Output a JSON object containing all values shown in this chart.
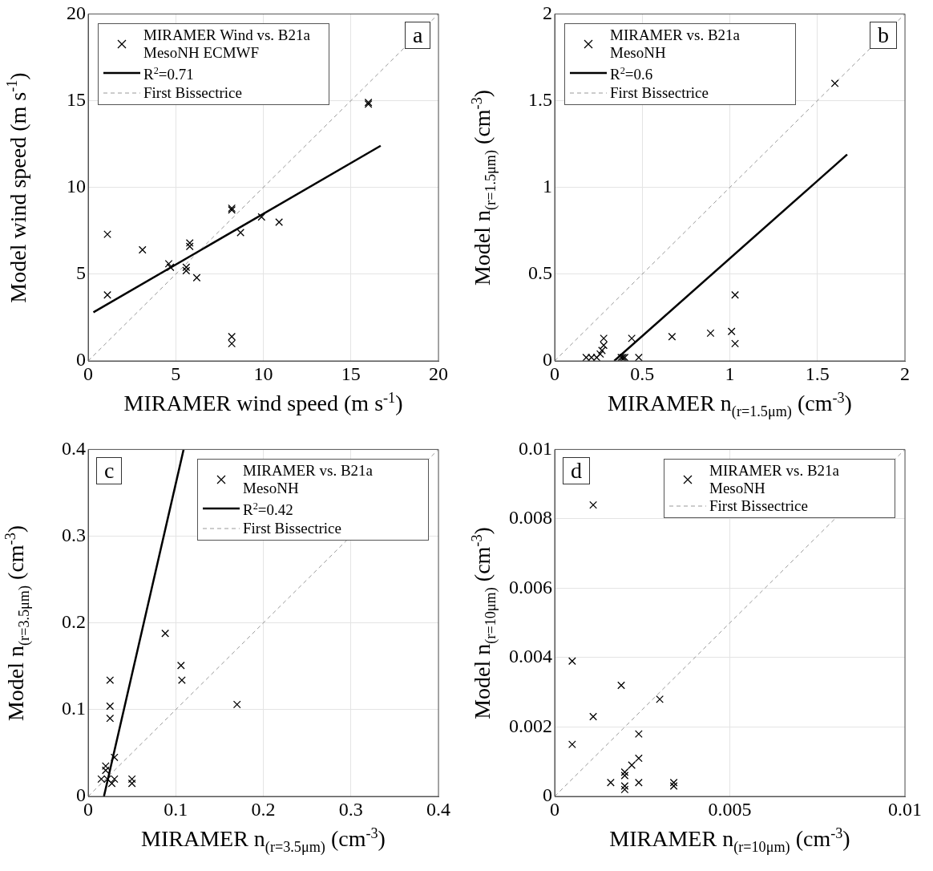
{
  "chart_data": [
    {
      "type": "scatter",
      "xlabel": "MIRAMER wind speed (m s$^{-1}$)",
      "ylabel": "Model wind speed (m s$^{-1}$)",
      "xlim": [
        0,
        20
      ],
      "ylim": [
        0,
        20
      ],
      "xticks": [
        0,
        5,
        10,
        15,
        20
      ],
      "yticks": [
        0,
        5,
        10,
        15,
        20
      ],
      "grid": true,
      "legend": "top left",
      "annotations": [
        "a"
      ],
      "series": [
        {
          "name": "MIRAMER Wind vs. B21a MesoNH ECMWF",
          "type": "scatter",
          "marker": "cross",
          "color": "#000000",
          "x": [
            1.1,
            1.1,
            3.1,
            4.6,
            4.7,
            5.6,
            5.6,
            5.8,
            5.8,
            6.2,
            8.2,
            8.2,
            8.2,
            8.2,
            8.7,
            9.9,
            10.9,
            16,
            16
          ],
          "values": [
            7.3,
            3.8,
            6.4,
            5.6,
            5.4,
            5.4,
            5.2,
            6.6,
            6.8,
            4.8,
            8.7,
            8.8,
            1.4,
            1.0,
            7.4,
            8.3,
            8.0,
            14.8,
            14.9
          ]
        },
        {
          "name": "R$^{2}$=0.71",
          "type": "line",
          "marker": "none",
          "color": "#000000",
          "x": [
            0.3,
            16.7
          ],
          "values": [
            2.8,
            12.4
          ]
        },
        {
          "name": "First Bissectrice",
          "type": "line",
          "marker": "none",
          "line_style": "dashed",
          "color": "#999999",
          "x": [
            0,
            20
          ],
          "values": [
            0,
            20
          ]
        }
      ]
    },
    {
      "type": "scatter",
      "xlabel": "MIRAMER n$_{(r=1.5μm)}$ (cm$^{-3}$)",
      "ylabel": "Model n$_{(r=1.5μm)}$ (cm$^{-3}$)",
      "xlim": [
        0,
        2
      ],
      "ylim": [
        0,
        2
      ],
      "xticks": [
        0,
        0.5,
        1,
        1.5,
        2
      ],
      "yticks": [
        0,
        0.5,
        1,
        1.5,
        2
      ],
      "grid": true,
      "legend": "top left",
      "annotations": [
        "b"
      ],
      "series": [
        {
          "name": "MIRAMER vs. B21a MesoNH",
          "type": "scatter",
          "marker": "cross",
          "color": "#000000",
          "x": [
            0.18,
            0.21,
            0.24,
            0.26,
            0.27,
            0.28,
            0.28,
            0.38,
            0.39,
            0.4,
            0.44,
            0.48,
            0.67,
            0.89,
            1.01,
            1.03,
            1.03,
            1.6
          ],
          "values": [
            0.02,
            0.02,
            0.02,
            0.04,
            0.06,
            0.09,
            0.13,
            0.02,
            0.02,
            0.02,
            0.13,
            0.02,
            0.14,
            0.16,
            0.17,
            0.1,
            0.38,
            1.6
          ]
        },
        {
          "name": "R$^{2}$=0.6",
          "type": "line",
          "marker": "none",
          "color": "#000000",
          "x": [
            0.34,
            1.67
          ],
          "values": [
            0,
            1.19
          ]
        },
        {
          "name": "First Bissectrice",
          "type": "line",
          "marker": "none",
          "line_style": "dashed",
          "color": "#999999",
          "x": [
            0,
            2
          ],
          "values": [
            0,
            2
          ]
        }
      ]
    },
    {
      "type": "scatter",
      "xlabel": "MIRAMER n$_{(r=3.5μm)}$ (cm$^{-3}$)",
      "ylabel": "Model n$_{(r=3.5μm)}$ (cm$^{-3}$)",
      "xlim": [
        0,
        0.4
      ],
      "ylim": [
        0,
        0.4
      ],
      "xticks": [
        0,
        0.1,
        0.2,
        0.3,
        0.4
      ],
      "yticks": [
        0,
        0.1,
        0.2,
        0.3,
        0.4
      ],
      "grid": true,
      "legend": "top right",
      "annotations": [
        "c"
      ],
      "series": [
        {
          "name": "MIRAMER vs. B21a MesoNH",
          "type": "scatter",
          "marker": "cross",
          "color": "#000000",
          "x": [
            0.015,
            0.02,
            0.02,
            0.022,
            0.025,
            0.025,
            0.025,
            0.027,
            0.03,
            0.03,
            0.05,
            0.05,
            0.088,
            0.106,
            0.107,
            0.17
          ],
          "values": [
            0.02,
            0.03,
            0.035,
            0.02,
            0.09,
            0.104,
            0.134,
            0.015,
            0.045,
            0.02,
            0.015,
            0.02,
            0.188,
            0.151,
            0.134,
            0.106
          ]
        },
        {
          "name": "R$^{2}$=0.42",
          "type": "line",
          "marker": "none",
          "color": "#000000",
          "x": [
            0.018,
            0.109
          ],
          "values": [
            0,
            0.4
          ]
        },
        {
          "name": "First Bissectrice",
          "type": "line",
          "marker": "none",
          "line_style": "dashed",
          "color": "#999999",
          "x": [
            0,
            0.4
          ],
          "values": [
            0,
            0.4
          ]
        }
      ]
    },
    {
      "type": "scatter",
      "xlabel": "MIRAMER n$_{(r=10μm)}$ (cm$^{-3}$)",
      "ylabel": "Model n$_{(r=10μm)}$ (cm$^{-3}$)",
      "xlim": [
        0,
        0.01
      ],
      "ylim": [
        0,
        0.01
      ],
      "xticks": [
        0,
        0.005,
        0.01
      ],
      "yticks": [
        0,
        0.002,
        0.004,
        0.006,
        0.008,
        0.01
      ],
      "grid": true,
      "legend": "top right",
      "annotations": [
        "d"
      ],
      "series": [
        {
          "name": "MIRAMER vs. B21a MesoNH",
          "type": "scatter",
          "marker": "cross",
          "color": "#000000",
          "x": [
            0.0005,
            0.0005,
            0.0011,
            0.0011,
            0.0016,
            0.0019,
            0.002,
            0.002,
            0.002,
            0.002,
            0.0022,
            0.0024,
            0.0024,
            0.0024,
            0.003,
            0.0034,
            0.0034
          ],
          "values": [
            0.0015,
            0.0039,
            0.0084,
            0.0023,
            0.0004,
            0.0032,
            0.0007,
            0.0006,
            0.0002,
            0.0003,
            0.0009,
            0.0011,
            0.0018,
            0.0004,
            0.0028,
            0.0004,
            0.0003
          ]
        },
        {
          "name": "First Bissectrice",
          "type": "line",
          "marker": "none",
          "line_style": "dashed",
          "color": "#999999",
          "x": [
            0,
            0.01
          ],
          "values": [
            0,
            0.01
          ]
        }
      ]
    }
  ]
}
